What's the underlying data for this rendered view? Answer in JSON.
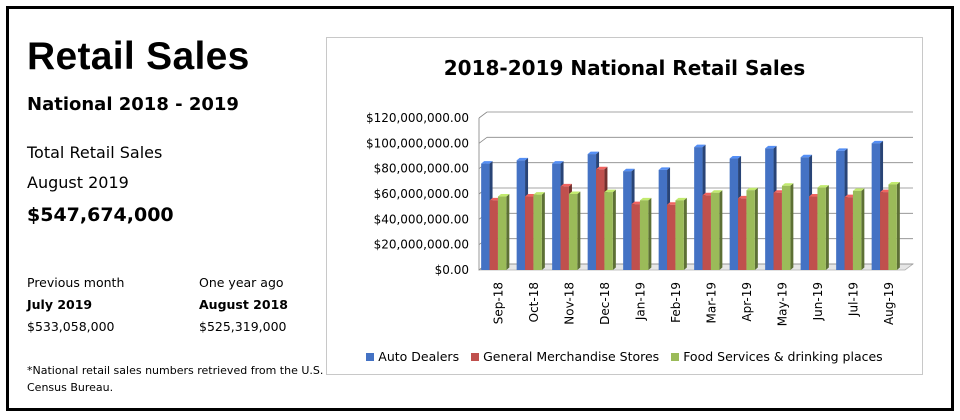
{
  "page": {
    "title": "Retail Sales",
    "subtitle": "National 2018 - 2019",
    "total": {
      "label": "Total Retail Sales",
      "period": "August 2019",
      "value": "$547,674,000"
    },
    "previous_month": {
      "label": "Previous month",
      "period": "July 2019",
      "value": "$533,058,000"
    },
    "year_ago": {
      "label": "One year ago",
      "period": "August 2018",
      "value": "$525,319,000"
    },
    "footnote": "*National retail sales numbers retrieved from the U.S. Census Bureau."
  },
  "chart_data": {
    "type": "bar",
    "title": "2018-2019 National Retail Sales",
    "xlabel": "",
    "ylabel": "",
    "categories": [
      "Sep-18",
      "Oct-18",
      "Nov-18",
      "Dec-18",
      "Jan-19",
      "Feb-19",
      "Mar-19",
      "Apr-19",
      "May-19",
      "Jun-19",
      "Jul-19",
      "Aug-19"
    ],
    "ylim": [
      0,
      120000000
    ],
    "yticks": [
      0,
      20000000,
      40000000,
      60000000,
      80000000,
      100000000,
      120000000
    ],
    "ytick_labels": [
      "$0.00",
      "$20,000,000.00",
      "$40,000,000.00",
      "$60,000,000.00",
      "$80,000,000.00",
      "$100,000,000.00",
      "$120,000,000.00"
    ],
    "grid": true,
    "legend_position": "bottom",
    "series": [
      {
        "name": "Auto Dealers",
        "color": "#4472c4",
        "values": [
          84000000,
          86500000,
          84000000,
          91500000,
          78000000,
          79000000,
          97000000,
          88000000,
          96000000,
          89000000,
          94000000,
          100000000
        ]
      },
      {
        "name": "General Merchandise Stores",
        "color": "#c0504d",
        "values": [
          55000000,
          58000000,
          66000000,
          79500000,
          52000000,
          51500000,
          59000000,
          56500000,
          61000000,
          58000000,
          57500000,
          61500000
        ]
      },
      {
        "name": "Food Services & drinking places",
        "color": "#9bbb59",
        "values": [
          58000000,
          59500000,
          60000000,
          61500000,
          55000000,
          55000000,
          61000000,
          63000000,
          66500000,
          65000000,
          62500000,
          67500000
        ]
      }
    ]
  }
}
